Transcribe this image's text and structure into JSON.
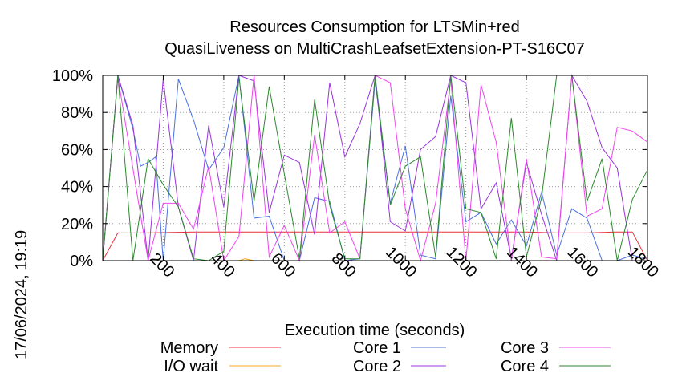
{
  "chart_data": {
    "type": "line",
    "title_line1": "Resources Consumption for LTSMin+red",
    "title_line2": "QuasiLiveness on MultiCrashLeafsetExtension-PT-S16C07",
    "xlabel": "Execution time (seconds)",
    "ylabel": "",
    "xlim": [
      0,
      1800
    ],
    "ylim": [
      0,
      100
    ],
    "x_ticks": [
      200,
      400,
      600,
      800,
      1000,
      1200,
      1400,
      1600,
      1800
    ],
    "x_tick_labels": [
      "200",
      "400",
      "600",
      "800",
      "1000",
      "1200",
      "1400",
      "1600",
      "1800"
    ],
    "y_ticks": [
      0,
      20,
      40,
      60,
      80,
      100
    ],
    "y_tick_labels": [
      "0%",
      "20%",
      "40%",
      "60%",
      "80%",
      "100%"
    ],
    "grid": true,
    "legend_position": "bottom",
    "timestamp": "17/06/2024, 19:19",
    "series": [
      {
        "name": "Memory",
        "color": "#e8303a",
        "points": [
          [
            0,
            0
          ],
          [
            50,
            15
          ],
          [
            150,
            15
          ],
          [
            300,
            15.5
          ],
          [
            450,
            15.5
          ],
          [
            600,
            15.5
          ],
          [
            800,
            15.5
          ],
          [
            1000,
            15.5
          ],
          [
            1200,
            15.5
          ],
          [
            1300,
            15.5
          ],
          [
            1400,
            15.5
          ],
          [
            1500,
            15
          ],
          [
            1600,
            15
          ],
          [
            1700,
            15.5
          ],
          [
            1750,
            15.5
          ],
          [
            1800,
            0
          ]
        ]
      },
      {
        "name": "I/O wait",
        "color": "#f5a623",
        "points": [
          [
            0,
            0
          ],
          [
            450,
            0
          ],
          [
            470,
            1
          ],
          [
            500,
            0
          ],
          [
            1800,
            0
          ]
        ]
      },
      {
        "name": "Core 1",
        "color": "#4a70e0",
        "points": [
          [
            0,
            0
          ],
          [
            50,
            100
          ],
          [
            100,
            71
          ],
          [
            125,
            51
          ],
          [
            150,
            53
          ],
          [
            175,
            56
          ],
          [
            200,
            0
          ],
          [
            250,
            98
          ],
          [
            300,
            76
          ],
          [
            350,
            49
          ],
          [
            400,
            61
          ],
          [
            450,
            100
          ],
          [
            500,
            23
          ],
          [
            550,
            24
          ],
          [
            600,
            0
          ],
          [
            650,
            0
          ],
          [
            700,
            34
          ],
          [
            750,
            32
          ],
          [
            800,
            0
          ],
          [
            850,
            1
          ],
          [
            900,
            97
          ],
          [
            950,
            31
          ],
          [
            1000,
            62
          ],
          [
            1050,
            3
          ],
          [
            1100,
            1
          ],
          [
            1150,
            89
          ],
          [
            1200,
            21
          ],
          [
            1250,
            26
          ],
          [
            1300,
            9
          ],
          [
            1350,
            22
          ],
          [
            1400,
            8
          ],
          [
            1450,
            37
          ],
          [
            1500,
            3
          ],
          [
            1550,
            28
          ],
          [
            1600,
            23
          ],
          [
            1650,
            0
          ],
          [
            1700,
            0
          ],
          [
            1750,
            3
          ],
          [
            1800,
            1
          ]
        ]
      },
      {
        "name": "Core 2",
        "color": "#9933dd",
        "points": [
          [
            0,
            0
          ],
          [
            50,
            100
          ],
          [
            100,
            73
          ],
          [
            150,
            0
          ],
          [
            200,
            98
          ],
          [
            250,
            29
          ],
          [
            300,
            0
          ],
          [
            350,
            73
          ],
          [
            400,
            29
          ],
          [
            450,
            100
          ],
          [
            500,
            97
          ],
          [
            550,
            26
          ],
          [
            600,
            57
          ],
          [
            650,
            53
          ],
          [
            700,
            14
          ],
          [
            750,
            96
          ],
          [
            800,
            56
          ],
          [
            850,
            74
          ],
          [
            900,
            100
          ],
          [
            950,
            21
          ],
          [
            1000,
            16
          ],
          [
            1050,
            60
          ],
          [
            1100,
            67
          ],
          [
            1150,
            100
          ],
          [
            1200,
            96
          ],
          [
            1250,
            28
          ],
          [
            1300,
            42
          ],
          [
            1350,
            1
          ],
          [
            1400,
            53
          ],
          [
            1450,
            25
          ],
          [
            1500,
            0
          ],
          [
            1550,
            100
          ],
          [
            1600,
            86
          ],
          [
            1650,
            61
          ],
          [
            1700,
            50
          ],
          [
            1750,
            0
          ],
          [
            1800,
            0
          ]
        ]
      },
      {
        "name": "Core 3",
        "color": "#ee44ee",
        "points": [
          [
            0,
            0
          ],
          [
            50,
            99
          ],
          [
            150,
            0
          ],
          [
            200,
            31
          ],
          [
            250,
            31
          ],
          [
            300,
            17
          ],
          [
            350,
            51
          ],
          [
            400,
            0
          ],
          [
            450,
            13
          ],
          [
            500,
            100
          ],
          [
            550,
            2
          ],
          [
            600,
            19
          ],
          [
            650,
            0
          ],
          [
            700,
            68
          ],
          [
            750,
            15
          ],
          [
            800,
            21
          ],
          [
            850,
            1
          ],
          [
            900,
            100
          ],
          [
            950,
            96
          ],
          [
            1000,
            28
          ],
          [
            1050,
            0
          ],
          [
            1100,
            31
          ],
          [
            1150,
            98
          ],
          [
            1200,
            0
          ],
          [
            1250,
            95
          ],
          [
            1300,
            64
          ],
          [
            1350,
            0
          ],
          [
            1400,
            55
          ],
          [
            1450,
            2
          ],
          [
            1500,
            1
          ],
          [
            1550,
            100
          ],
          [
            1600,
            24
          ],
          [
            1650,
            28
          ],
          [
            1700,
            72
          ],
          [
            1750,
            70
          ],
          [
            1800,
            64
          ]
        ]
      },
      {
        "name": "Core 4",
        "color": "#2a8a2a",
        "points": [
          [
            0,
            0
          ],
          [
            50,
            100
          ],
          [
            100,
            0
          ],
          [
            150,
            55
          ],
          [
            200,
            41
          ],
          [
            250,
            29
          ],
          [
            300,
            1
          ],
          [
            350,
            0
          ],
          [
            400,
            5
          ],
          [
            450,
            99
          ],
          [
            500,
            32
          ],
          [
            550,
            94
          ],
          [
            600,
            47
          ],
          [
            650,
            1
          ],
          [
            700,
            87
          ],
          [
            750,
            30
          ],
          [
            800,
            1
          ],
          [
            850,
            1
          ],
          [
            900,
            100
          ],
          [
            950,
            30
          ],
          [
            1000,
            51
          ],
          [
            1050,
            56
          ],
          [
            1100,
            2
          ],
          [
            1150,
            100
          ],
          [
            1200,
            28
          ],
          [
            1250,
            26
          ],
          [
            1300,
            1
          ],
          [
            1350,
            77
          ],
          [
            1400,
            2
          ],
          [
            1450,
            34
          ],
          [
            1500,
            100
          ],
          [
            1550,
            100
          ],
          [
            1600,
            32
          ],
          [
            1650,
            55
          ],
          [
            1700,
            0
          ],
          [
            1750,
            33
          ],
          [
            1800,
            49
          ]
        ]
      }
    ]
  }
}
